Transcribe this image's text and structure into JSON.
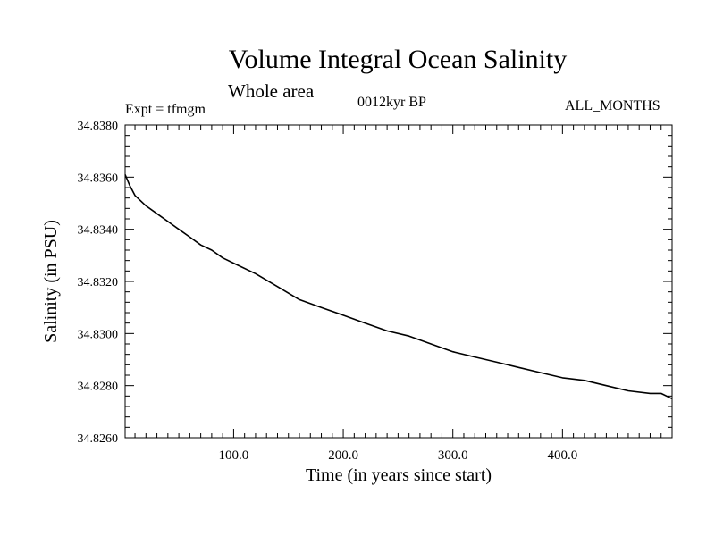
{
  "header": {
    "title": "Volume Integral Ocean Salinity",
    "subtitle": "Whole area",
    "experiment": "Expt = tfmgm",
    "period": "0012kyr BP",
    "months": "ALL_MONTHS"
  },
  "chart_data": {
    "type": "line",
    "title": "Volume Integral Ocean Salinity",
    "subtitle": "Whole area",
    "xlabel": "Time (in years since start)",
    "ylabel": "Salinity (in PSU)",
    "xlim": [
      1,
      500
    ],
    "ylim": [
      34.826,
      34.838
    ],
    "x_ticks": [
      100,
      200,
      300,
      400
    ],
    "x_tick_labels": [
      "100.0",
      "200.0",
      "300.0",
      "400.0"
    ],
    "y_ticks": [
      34.826,
      34.828,
      34.83,
      34.832,
      34.834,
      34.836,
      34.838
    ],
    "y_tick_labels": [
      "34.8260",
      "34.8280",
      "34.8300",
      "34.8320",
      "34.8340",
      "34.8360",
      "34.8380"
    ],
    "grid": false,
    "series": [
      {
        "x": [
          1,
          5,
          10,
          20,
          30,
          40,
          50,
          60,
          70,
          80,
          90,
          100,
          120,
          140,
          160,
          180,
          200,
          220,
          240,
          260,
          280,
          300,
          320,
          340,
          360,
          380,
          400,
          420,
          440,
          460,
          480,
          490,
          500
        ],
        "values": [
          34.8361,
          34.8357,
          34.8353,
          34.8349,
          34.8346,
          34.8343,
          34.834,
          34.8337,
          34.8334,
          34.8332,
          34.8329,
          34.8327,
          34.8323,
          34.8318,
          34.8313,
          34.831,
          34.8307,
          34.8304,
          34.8301,
          34.8299,
          34.8296,
          34.8293,
          34.8291,
          34.8289,
          34.8287,
          34.8285,
          34.8283,
          34.8282,
          34.828,
          34.8278,
          34.8277,
          34.8277,
          34.8275
        ],
        "color": "#000000"
      }
    ]
  }
}
